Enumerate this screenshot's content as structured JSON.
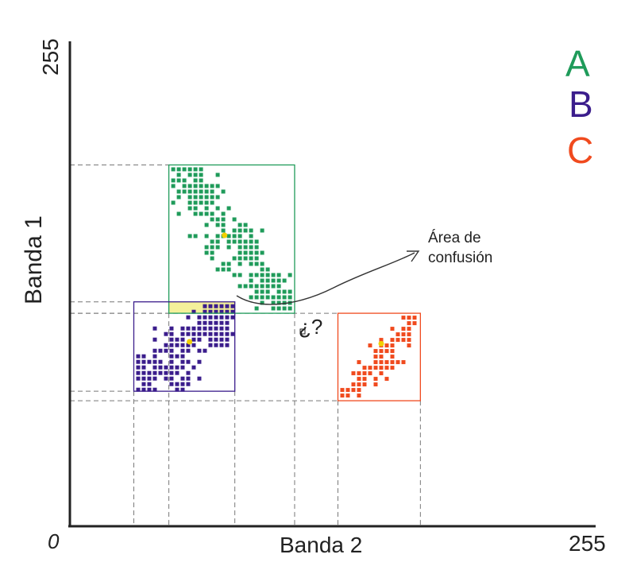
{
  "axes": {
    "x_label": "Banda 2",
    "y_label": "Banda 1",
    "x_max_label": "255",
    "y_max_label": "255",
    "origin_label": "0"
  },
  "legend": [
    {
      "label": "A",
      "color": "#1f9b5a"
    },
    {
      "label": "B",
      "color": "#3b1d8c"
    },
    {
      "label": "C",
      "color": "#f04a1e"
    }
  ],
  "annotation": {
    "line1": "Área de",
    "line2": "confusión",
    "question": "¿?"
  },
  "colors": {
    "class_a": "#1f9b5a",
    "class_b": "#3b1d8c",
    "class_c": "#f04a1e",
    "confusion_fill": "#f4f09a",
    "centroid": "#f2d000"
  },
  "chart_data": {
    "type": "scatter",
    "xlabel": "Banda 2",
    "ylabel": "Banda 1",
    "xlim": [
      0,
      255
    ],
    "ylim": [
      0,
      255
    ],
    "classes": [
      {
        "name": "A",
        "x_range": [
          48,
          109
        ],
        "y_range": [
          112,
          190
        ],
        "centroid": [
          75,
          153
        ]
      },
      {
        "name": "B",
        "x_range": [
          31,
          80
        ],
        "y_range": [
          71,
          118
        ],
        "centroid": [
          58,
          97
        ]
      },
      {
        "name": "C",
        "x_range": [
          130,
          170
        ],
        "y_range": [
          66,
          112
        ],
        "centroid": [
          151,
          96
        ]
      }
    ],
    "confusion_area": {
      "x_range": [
        48,
        80
      ],
      "y_range": [
        112,
        118
      ]
    }
  }
}
